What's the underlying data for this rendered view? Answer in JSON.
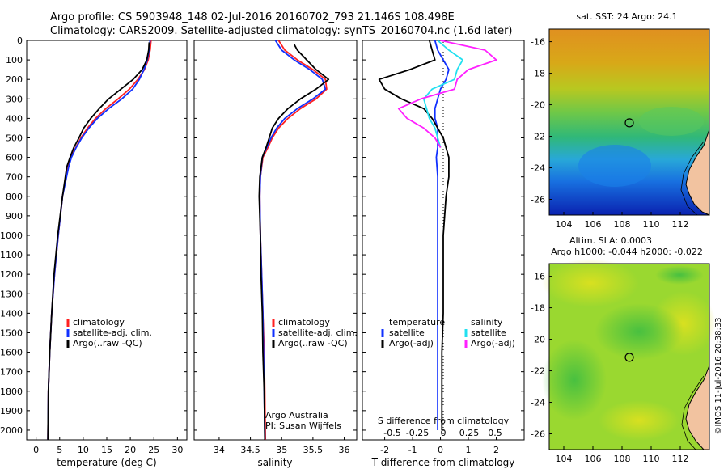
{
  "title_line1": "Argo profile: CS 5903948_148 02-Jul-2016 20160702_793 21.146S 108.498E",
  "title_line2": "Climatology: CARS2009. Satellite-adjusted climatology: synTS_20160704.nc (1.6d later)",
  "footer_text": "©IMOS 11-Jul-2016 20:38:33",
  "colors": {
    "climatology": "#ff2020",
    "satellite": "#1030ff",
    "argo": "#000000",
    "sat_salinity": "#22e0f0",
    "argo_salinity": "#ff20ff"
  },
  "depth_axis": {
    "range": [
      0,
      2050
    ],
    "ticks": [
      0,
      100,
      200,
      300,
      400,
      500,
      600,
      700,
      800,
      900,
      1000,
      1100,
      1200,
      1300,
      1400,
      1500,
      1600,
      1700,
      1800,
      1900,
      2000
    ]
  },
  "chart_data": [
    {
      "type": "line",
      "panel": "temperature",
      "xlabel": "temperature (deg C)",
      "xlim": [
        -2,
        32
      ],
      "ylim": [
        0,
        2050
      ],
      "xticks": [
        0,
        5,
        10,
        15,
        20,
        25,
        30
      ],
      "legend": [
        "climatology",
        "satellite-adj. clim.",
        "Argo(..raw -QC)"
      ],
      "series": [
        {
          "name": "climatology",
          "color": "#ff2020",
          "x": [
            24.4,
            24.2,
            23.8,
            23.0,
            21.6,
            19.8,
            17.4,
            14.8,
            12.6,
            10.9,
            9.5,
            8.4,
            7.4,
            6.8,
            5.6,
            4.7,
            3.9,
            3.3,
            2.9,
            2.6,
            2.5
          ],
          "y": [
            0,
            50,
            100,
            150,
            200,
            250,
            300,
            350,
            400,
            450,
            500,
            550,
            600,
            650,
            800,
            1000,
            1200,
            1400,
            1600,
            1800,
            2050
          ]
        },
        {
          "name": "satellite-adj. clim.",
          "color": "#1030ff",
          "x": [
            24.2,
            24.0,
            23.6,
            22.9,
            21.9,
            20.5,
            18.2,
            15.4,
            13.0,
            11.2,
            9.7,
            8.5,
            7.5,
            6.9,
            5.6,
            4.7,
            3.9,
            3.3,
            2.9,
            2.6,
            2.5
          ],
          "y": [
            0,
            50,
            100,
            150,
            200,
            250,
            300,
            350,
            400,
            450,
            500,
            550,
            600,
            650,
            800,
            1000,
            1200,
            1400,
            1600,
            1800,
            2050
          ]
        },
        {
          "name": "Argo(..raw -QC)",
          "color": "#000000",
          "x": [
            24.0,
            23.9,
            23.5,
            22.5,
            20.6,
            18.0,
            15.4,
            13.4,
            11.6,
            10.1,
            9.1,
            8.0,
            7.2,
            6.5,
            5.6,
            4.6,
            3.8,
            3.3,
            2.9,
            2.6,
            2.5
          ],
          "y": [
            10,
            50,
            100,
            150,
            200,
            250,
            300,
            350,
            400,
            450,
            500,
            550,
            600,
            650,
            800,
            1000,
            1200,
            1400,
            1600,
            1800,
            2050
          ]
        }
      ]
    },
    {
      "type": "line",
      "panel": "salinity",
      "xlabel": "salinity",
      "xlim": [
        33.6,
        36.2
      ],
      "ylim": [
        0,
        2050
      ],
      "xticks": [
        34,
        34.5,
        35,
        35.5,
        36
      ],
      "legend": [
        "climatology",
        "satellite-adj. clim.",
        "Argo(..raw -QC)"
      ],
      "annotation": [
        "Argo Australia",
        "PI: Susan Wijffels"
      ],
      "series": [
        {
          "name": "climatology",
          "color": "#ff2020",
          "x": [
            34.95,
            35.05,
            35.25,
            35.5,
            35.7,
            35.72,
            35.55,
            35.3,
            35.1,
            34.95,
            34.85,
            34.78,
            34.7,
            34.66,
            34.65,
            34.66,
            34.68,
            34.7,
            34.72,
            34.73,
            34.74
          ],
          "y": [
            0,
            50,
            100,
            150,
            200,
            250,
            300,
            350,
            400,
            450,
            500,
            550,
            600,
            700,
            800,
            1000,
            1200,
            1400,
            1600,
            1800,
            2050
          ]
        },
        {
          "name": "satellite-adj. clim.",
          "color": "#1030ff",
          "x": [
            34.9,
            35.0,
            35.2,
            35.45,
            35.65,
            35.7,
            35.5,
            35.25,
            35.05,
            34.92,
            34.83,
            34.76,
            34.69,
            34.66,
            34.65,
            34.66,
            34.68,
            34.7,
            34.71,
            34.72,
            34.73
          ],
          "y": [
            0,
            50,
            100,
            150,
            200,
            250,
            300,
            350,
            400,
            450,
            500,
            550,
            600,
            700,
            800,
            1000,
            1200,
            1400,
            1600,
            1800,
            2050
          ]
        },
        {
          "name": "Argo(..raw -QC)",
          "color": "#000000",
          "x": [
            35.2,
            35.25,
            35.4,
            35.55,
            35.75,
            35.55,
            35.3,
            35.1,
            34.95,
            34.85,
            34.8,
            34.75,
            34.69,
            34.65,
            34.64,
            34.66,
            34.67,
            34.69,
            34.7,
            34.72,
            34.73
          ],
          "y": [
            20,
            50,
            100,
            150,
            200,
            250,
            300,
            350,
            400,
            450,
            500,
            550,
            600,
            700,
            800,
            1000,
            1200,
            1400,
            1600,
            1800,
            2050
          ]
        }
      ]
    },
    {
      "type": "line",
      "panel": "differences",
      "xlabel": "T difference from climatology",
      "xlabel2": "S difference from climatology",
      "xlim": [
        -2.8,
        3.0
      ],
      "ylim": [
        0,
        2050
      ],
      "xticks": [
        -2,
        -1,
        0,
        1,
        2
      ],
      "xticks_s": [
        "-0.5",
        "-0.25",
        "0",
        "0.25",
        "0.5"
      ],
      "legend_titles": [
        "temperature",
        "salinity"
      ],
      "legend": [
        "satellite",
        "Argo(-adj)",
        "satellite",
        "Argo(-adj)"
      ],
      "series": [
        {
          "name": "satellite",
          "quantity": "T",
          "color": "#1030ff",
          "x": [
            -0.2,
            -0.1,
            0.1,
            0.3,
            0.2,
            0.0,
            -0.1,
            -0.2,
            -0.2,
            -0.1,
            -0.1,
            -0.1,
            -0.15,
            -0.1,
            -0.1,
            -0.1,
            -0.1,
            -0.1,
            -0.1,
            -0.1
          ],
          "y": [
            0,
            50,
            100,
            150,
            200,
            250,
            300,
            350,
            400,
            450,
            500,
            550,
            600,
            700,
            800,
            1000,
            1200,
            1400,
            1600,
            2000
          ]
        },
        {
          "name": "Argo(-adj)",
          "quantity": "T",
          "color": "#000000",
          "x": [
            -0.4,
            -0.3,
            -0.2,
            -1.1,
            -2.2,
            -2.0,
            -1.4,
            -0.6,
            -0.3,
            -0.1,
            0.1,
            0.2,
            0.3,
            0.3,
            0.2,
            0.1,
            0.1,
            0.1,
            0.05,
            0.05
          ],
          "y": [
            0,
            50,
            100,
            150,
            200,
            250,
            300,
            350,
            400,
            450,
            500,
            550,
            600,
            700,
            800,
            1000,
            1200,
            1400,
            1600,
            2000
          ]
        },
        {
          "name": "satellite",
          "quantity": "S",
          "color": "#22e0f0",
          "x": [
            -0.1,
            0.3,
            0.8,
            0.6,
            0.5,
            -0.3,
            -0.6,
            -0.5,
            -0.4,
            -0.2,
            -0.1,
            0.0
          ],
          "y": [
            0,
            50,
            100,
            150,
            200,
            250,
            300,
            350,
            400,
            450,
            500,
            550
          ]
        },
        {
          "name": "Argo(-adj)",
          "quantity": "S",
          "color": "#ff20ff",
          "x": [
            0.0,
            1.6,
            2.0,
            1.0,
            0.6,
            0.5,
            -0.7,
            -1.5,
            -1.2,
            -0.6,
            -0.2,
            0.0
          ],
          "y": [
            0,
            50,
            100,
            150,
            200,
            250,
            300,
            350,
            400,
            450,
            500,
            550
          ]
        }
      ]
    },
    {
      "type": "heatmap",
      "panel": "sst_map",
      "title": "sat. SST: 24 Argo: 24.1",
      "xlim": [
        103,
        114
      ],
      "ylim": [
        -27,
        -15.2
      ],
      "xticks": [
        104,
        106,
        108,
        110,
        112
      ],
      "yticks": [
        -16,
        -18,
        -20,
        -22,
        -24,
        -26
      ],
      "marker": {
        "lon": 108.498,
        "lat": -21.146
      }
    },
    {
      "type": "heatmap",
      "panel": "sla_map",
      "title_line1": "Altim. SLA: 0.0003",
      "title_line2": "Argo h1000: -0.044 h2000: -0.022",
      "xlim": [
        103,
        114
      ],
      "ylim": [
        -27,
        -15.2
      ],
      "xticks": [
        104,
        106,
        108,
        110,
        112
      ],
      "yticks": [
        -16,
        -18,
        -20,
        -22,
        -24,
        -26
      ],
      "marker": {
        "lon": 108.498,
        "lat": -21.146
      }
    }
  ]
}
